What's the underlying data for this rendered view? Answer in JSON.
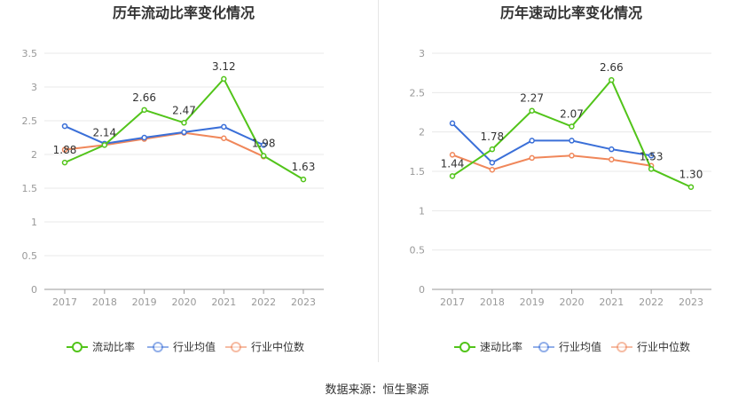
{
  "source_text": "数据来源：恒生聚源",
  "colors": {
    "primary": "#52c41a",
    "industry_avg": "#3a6fd8",
    "industry_median": "#f0875a"
  },
  "chart_data": [
    {
      "type": "line",
      "title": "历年流动比率变化情况",
      "x": [
        "2017",
        "2018",
        "2019",
        "2020",
        "2021",
        "2022",
        "2023"
      ],
      "ylim": [
        0,
        3.5
      ],
      "yticks": [
        "0",
        "0.5",
        "1",
        "1.5",
        "2",
        "2.5",
        "3",
        "3.5"
      ],
      "grid": true,
      "legend_position": "bottom",
      "series": [
        {
          "name": "流动比率",
          "values": [
            1.88,
            2.14,
            2.66,
            2.47,
            3.12,
            1.98,
            1.63
          ],
          "labels": [
            "1.88",
            "2.14",
            "2.66",
            "2.47",
            "3.12",
            "1.98",
            "1.63"
          ]
        },
        {
          "name": "行业均值",
          "values": [
            2.42,
            2.16,
            2.25,
            2.33,
            2.41,
            2.14,
            null
          ]
        },
        {
          "name": "行业中位数",
          "values": [
            2.07,
            2.14,
            2.23,
            2.32,
            2.24,
            1.97,
            null
          ]
        }
      ]
    },
    {
      "type": "line",
      "title": "历年速动比率变化情况",
      "x": [
        "2017",
        "2018",
        "2019",
        "2020",
        "2021",
        "2022",
        "2023"
      ],
      "ylim": [
        0,
        3
      ],
      "yticks": [
        "0",
        "0.5",
        "1",
        "1.5",
        "2",
        "2.5",
        "3"
      ],
      "grid": true,
      "legend_position": "bottom",
      "series": [
        {
          "name": "速动比率",
          "values": [
            1.44,
            1.78,
            2.27,
            2.07,
            2.66,
            1.53,
            1.3
          ],
          "labels": [
            "1.44",
            "1.78",
            "2.27",
            "2.07",
            "2.66",
            "1.53",
            "1.30"
          ]
        },
        {
          "name": "行业均值",
          "values": [
            2.11,
            1.61,
            1.89,
            1.89,
            1.78,
            1.7,
            null
          ]
        },
        {
          "name": "行业中位数",
          "values": [
            1.71,
            1.52,
            1.67,
            1.7,
            1.65,
            1.57,
            null
          ]
        }
      ]
    }
  ]
}
